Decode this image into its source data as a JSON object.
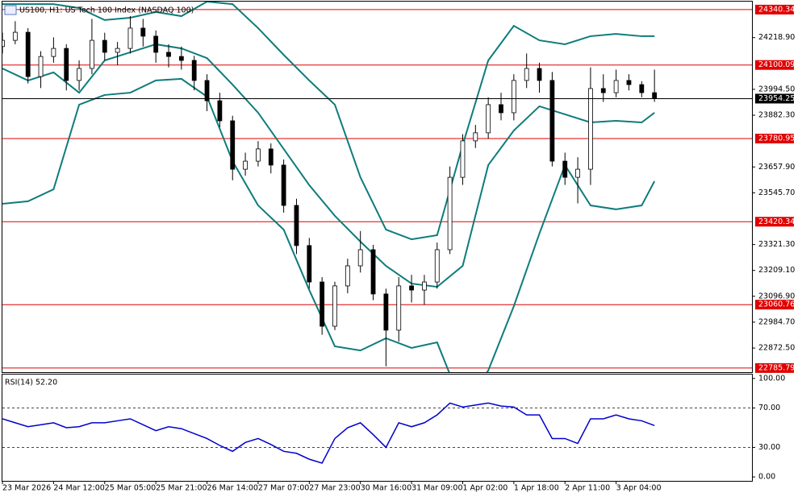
{
  "chart_data": [
    {
      "type": "candlestick",
      "title": "US100, H1:  US Tech 100 Index (NASDAQ 100)",
      "xlim": [
        0,
        58.5
      ],
      "ylim": [
        22768,
        24375
      ],
      "xticks": [
        {
          "value": 0,
          "label": "23 Mar 2026"
        },
        {
          "value": 4,
          "label": "24 Mar 12:00"
        },
        {
          "value": 8,
          "label": "25 Mar 05:00"
        },
        {
          "value": 12,
          "label": "25 Mar 21:00"
        },
        {
          "value": 16,
          "label": "26 Mar 14:00"
        },
        {
          "value": 20,
          "label": "27 Mar 07:00"
        },
        {
          "value": 24,
          "label": "27 Mar 23:00"
        },
        {
          "value": 28,
          "label": "30 Mar 16:00"
        },
        {
          "value": 32,
          "label": "31 Mar 09:00"
        },
        {
          "value": 36,
          "label": "1 Apr 02:00"
        },
        {
          "value": 40,
          "label": "1 Apr 18:00"
        },
        {
          "value": 44,
          "label": "2 Apr 11:00"
        },
        {
          "value": 48,
          "label": "3 Apr 04:00"
        }
      ],
      "yticks": [
        {
          "value": 24218.9,
          "label": "24218.90"
        },
        {
          "value": 23994.5,
          "label": "23994.50"
        },
        {
          "value": 23882.3,
          "label": "23882.30"
        },
        {
          "value": 23657.9,
          "label": "23657.90"
        },
        {
          "value": 23545.7,
          "label": "23545.70"
        },
        {
          "value": 23321.3,
          "label": "23321.30"
        },
        {
          "value": 23209.1,
          "label": "23209.10"
        },
        {
          "value": 23096.9,
          "label": "23096.90"
        },
        {
          "value": 22984.7,
          "label": "22984.70"
        },
        {
          "value": 22872.5,
          "label": "22872.50"
        }
      ],
      "levels": [
        {
          "value": 24340.34,
          "label": "24340.34"
        },
        {
          "value": 24100.09,
          "label": "24100.09"
        },
        {
          "value": 23780.95,
          "label": "23780.95"
        },
        {
          "value": 23420.34,
          "label": "23420.34"
        },
        {
          "value": 23060.76,
          "label": "23060.76"
        },
        {
          "value": 22785.79,
          "label": "22785.79"
        }
      ],
      "level_color": "#e00000",
      "last_price": {
        "value": 23954.25,
        "label": "23954.25"
      },
      "up_color": "#ffffff",
      "down_color": "#000000",
      "ohlc": [
        [
          24180,
          24240,
          24150,
          24207
        ],
        [
          24207,
          24290,
          24190,
          24242
        ],
        [
          24242,
          24260,
          24020,
          24050
        ],
        [
          24050,
          24160,
          24000,
          24137
        ],
        [
          24137,
          24220,
          24110,
          24172
        ],
        [
          24172,
          24190,
          23990,
          24033
        ],
        [
          24033,
          24120,
          23990,
          24085
        ],
        [
          24085,
          24300,
          24060,
          24207
        ],
        [
          24207,
          24240,
          24120,
          24155
        ],
        [
          24155,
          24200,
          24100,
          24172
        ],
        [
          24172,
          24312,
          24150,
          24260
        ],
        [
          24260,
          24300,
          24180,
          24225
        ],
        [
          24225,
          24250,
          24110,
          24155
        ],
        [
          24155,
          24190,
          24090,
          24137
        ],
        [
          24137,
          24180,
          24080,
          24120
        ],
        [
          24120,
          24140,
          23990,
          24033
        ],
        [
          24033,
          24060,
          23900,
          23945
        ],
        [
          23945,
          23980,
          23830,
          23858
        ],
        [
          23858,
          23880,
          23600,
          23648
        ],
        [
          23648,
          23720,
          23620,
          23683
        ],
        [
          23683,
          23770,
          23660,
          23736
        ],
        [
          23736,
          23760,
          23630,
          23666
        ],
        [
          23666,
          23690,
          23460,
          23491
        ],
        [
          23491,
          23520,
          23280,
          23317
        ],
        [
          23317,
          23350,
          23130,
          23159
        ],
        [
          23159,
          23180,
          22930,
          22967
        ],
        [
          22967,
          23160,
          22950,
          23142
        ],
        [
          23142,
          23260,
          23110,
          23229
        ],
        [
          23229,
          23380,
          23200,
          23299
        ],
        [
          23299,
          23320,
          23080,
          23107
        ],
        [
          23107,
          23130,
          22793,
          22950
        ],
        [
          22950,
          23180,
          22900,
          23142
        ],
        [
          23142,
          23190,
          23070,
          23124
        ],
        [
          23124,
          23190,
          23060,
          23159
        ],
        [
          23159,
          23330,
          23130,
          23299
        ],
        [
          23299,
          23660,
          23280,
          23613
        ],
        [
          23613,
          23800,
          23580,
          23771
        ],
        [
          23771,
          23840,
          23740,
          23806
        ],
        [
          23806,
          23960,
          23780,
          23928
        ],
        [
          23928,
          23980,
          23860,
          23893
        ],
        [
          23893,
          24060,
          23860,
          24033
        ],
        [
          24033,
          24150,
          24000,
          24085
        ],
        [
          24085,
          24110,
          23980,
          24033
        ],
        [
          24033,
          24070,
          23660,
          23683
        ],
        [
          23683,
          23720,
          23580,
          23613
        ],
        [
          23613,
          23700,
          23500,
          23648
        ],
        [
          23648,
          24090,
          23580,
          23998
        ],
        [
          23998,
          24060,
          23940,
          23980
        ],
        [
          23980,
          24080,
          23960,
          24033
        ],
        [
          24033,
          24060,
          23990,
          24015
        ],
        [
          24015,
          24030,
          23960,
          23980
        ],
        [
          23980,
          24080,
          23940,
          23954.25
        ]
      ],
      "bands": {
        "color": "#0e7c7b",
        "x": [
          0,
          2,
          4,
          6,
          8,
          10,
          12,
          14,
          16,
          18,
          20,
          22,
          24,
          26,
          28,
          30,
          32,
          34,
          36,
          38,
          40,
          42,
          44,
          46,
          48,
          50,
          51
        ],
        "upper": [
          24364,
          24364,
          24364,
          24347,
          24295,
          24305,
          24330,
          24312,
          24375,
          24364,
          24260,
          24144,
          24033,
          23928,
          23613,
          23386,
          23344,
          23362,
          23753,
          24120,
          24270,
          24207,
          24190,
          24225,
          24235,
          24225,
          24225
        ],
        "middle": [
          24085,
          24033,
          24068,
          23980,
          24120,
          24155,
          24190,
          24172,
          24130,
          24015,
          23893,
          23736,
          23579,
          23446,
          23334,
          23229,
          23152,
          23138,
          23229,
          23666,
          23816,
          23921,
          23886,
          23851,
          23858,
          23851,
          23893
        ],
        "lower": [
          23498,
          23509,
          23561,
          23928,
          23970,
          23980,
          24033,
          24040,
          23963,
          23683,
          23491,
          23386,
          23124,
          22880,
          22862,
          22915,
          22873,
          22897,
          22620,
          22775,
          23054,
          23369,
          23666,
          23491,
          23474,
          23491,
          23596
        ]
      }
    },
    {
      "type": "line",
      "title": "RSI(14) 52.20",
      "color": "#0000cc",
      "xlim": [
        0,
        58.5
      ],
      "ylim": [
        -4,
        104
      ],
      "yticks": [
        {
          "value": 100,
          "label": "100.00"
        },
        {
          "value": 70,
          "label": "70.00"
        },
        {
          "value": 30,
          "label": "30.00"
        },
        {
          "value": 0,
          "label": "0.00"
        }
      ],
      "levels": [
        70,
        30
      ],
      "values": [
        59,
        55,
        51,
        53,
        55,
        50,
        51,
        55,
        55,
        57,
        59,
        53,
        47,
        51,
        49,
        44,
        39,
        32,
        26,
        35,
        39,
        33,
        26,
        24,
        18,
        14,
        39,
        50,
        55,
        43,
        30,
        55,
        51,
        55,
        63,
        75,
        71,
        73,
        75,
        72,
        71,
        63,
        63,
        39,
        39,
        34,
        59,
        59,
        63,
        59,
        57,
        52.2
      ]
    }
  ]
}
